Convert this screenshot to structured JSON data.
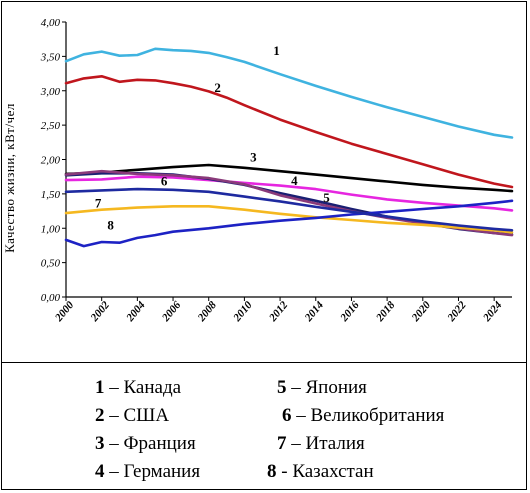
{
  "chart_data": {
    "type": "line",
    "title": "",
    "xlabel": "",
    "ylabel": "Качество жизни, кВт/чел",
    "xlim": [
      2000,
      2025
    ],
    "ylim": [
      0,
      4
    ],
    "x_ticks": [
      "2000",
      "2002",
      "2004",
      "2006",
      "2008",
      "2010",
      "2012",
      "2014",
      "2016",
      "2018",
      "2020",
      "2022",
      "2024"
    ],
    "y_ticks": [
      "0,00",
      "0,50",
      "1,00",
      "1,50",
      "2,00",
      "2,50",
      "3,00",
      "3,50",
      "4,00"
    ],
    "grid": false,
    "legend_position": "below",
    "series": [
      {
        "label": "1",
        "color": "#3fb3e0",
        "x": [
          2000,
          2001,
          2002,
          2003,
          2004,
          2005,
          2006,
          2007,
          2008,
          2009,
          2010,
          2012,
          2014,
          2016,
          2018,
          2020,
          2022,
          2024,
          2025
        ],
        "y": [
          3.43,
          3.53,
          3.57,
          3.51,
          3.52,
          3.61,
          3.59,
          3.58,
          3.55,
          3.49,
          3.42,
          3.24,
          3.07,
          2.91,
          2.76,
          2.62,
          2.48,
          2.36,
          2.32
        ]
      },
      {
        "label": "2",
        "color": "#c0161d",
        "x": [
          2000,
          2001,
          2002,
          2003,
          2004,
          2005,
          2006,
          2007,
          2008,
          2009,
          2010,
          2012,
          2014,
          2016,
          2018,
          2020,
          2022,
          2024,
          2025
        ],
        "y": [
          3.11,
          3.18,
          3.21,
          3.13,
          3.16,
          3.15,
          3.11,
          3.06,
          2.99,
          2.9,
          2.79,
          2.58,
          2.4,
          2.23,
          2.08,
          1.93,
          1.78,
          1.65,
          1.6
        ]
      },
      {
        "label": "3",
        "color": "#000000",
        "x": [
          2000,
          2002,
          2004,
          2006,
          2008,
          2010,
          2012,
          2014,
          2016,
          2018,
          2020,
          2022,
          2024,
          2025
        ],
        "y": [
          1.79,
          1.81,
          1.85,
          1.89,
          1.92,
          1.88,
          1.83,
          1.78,
          1.73,
          1.68,
          1.63,
          1.59,
          1.56,
          1.54
        ]
      },
      {
        "label": "4",
        "color": "#e626e0",
        "x": [
          2000,
          2002,
          2004,
          2006,
          2008,
          2010,
          2012,
          2014,
          2016,
          2018,
          2020,
          2022,
          2024,
          2025
        ],
        "y": [
          1.7,
          1.71,
          1.75,
          1.74,
          1.7,
          1.66,
          1.62,
          1.57,
          1.49,
          1.42,
          1.37,
          1.33,
          1.29,
          1.26
        ]
      },
      {
        "label": "5",
        "color": "#1a1f73",
        "x": [
          2000,
          2002,
          2004,
          2006,
          2008,
          2010,
          2012,
          2014,
          2016,
          2018,
          2020,
          2022,
          2024,
          2025
        ],
        "y": [
          1.77,
          1.8,
          1.8,
          1.78,
          1.72,
          1.63,
          1.51,
          1.4,
          1.28,
          1.17,
          1.07,
          0.99,
          0.93,
          0.91
        ]
      },
      {
        "label": "6",
        "color": "#8a3a7a",
        "x": [
          2000,
          2002,
          2004,
          2006,
          2008,
          2010,
          2012,
          2014,
          2016,
          2018,
          2020,
          2022,
          2024,
          2025
        ],
        "y": [
          1.78,
          1.83,
          1.79,
          1.77,
          1.73,
          1.64,
          1.48,
          1.36,
          1.25,
          1.15,
          1.07,
          1.0,
          0.93,
          0.9
        ]
      },
      {
        "label": "7",
        "color": "#f5b820",
        "x": [
          2000,
          2002,
          2004,
          2006,
          2008,
          2010,
          2012,
          2014,
          2016,
          2018,
          2020,
          2022,
          2024,
          2025
        ],
        "y": [
          1.22,
          1.27,
          1.3,
          1.32,
          1.32,
          1.27,
          1.21,
          1.16,
          1.12,
          1.08,
          1.05,
          1.01,
          0.97,
          0.94
        ]
      },
      {
        "label": "8",
        "color": "#1d22c4",
        "x": [
          2000,
          2001,
          2002,
          2003,
          2004,
          2005,
          2006,
          2008,
          2010,
          2012,
          2014,
          2016,
          2018,
          2020,
          2022,
          2024,
          2025
        ],
        "y": [
          0.83,
          0.74,
          0.8,
          0.79,
          0.86,
          0.9,
          0.95,
          1.0,
          1.06,
          1.11,
          1.15,
          1.2,
          1.24,
          1.28,
          1.32,
          1.37,
          1.4
        ]
      },
      {
        "label": "",
        "color": "#1e2aa0",
        "x": [
          2000,
          2002,
          2004,
          2006,
          2008,
          2010,
          2012,
          2014,
          2016,
          2018,
          2020,
          2022,
          2024,
          2025
        ],
        "y": [
          1.53,
          1.55,
          1.57,
          1.56,
          1.53,
          1.46,
          1.39,
          1.31,
          1.24,
          1.17,
          1.1,
          1.04,
          0.99,
          0.97
        ]
      }
    ],
    "series_label_positions": [
      {
        "text": "1",
        "x": 2011.8,
        "y": 3.52
      },
      {
        "text": "2",
        "x": 2008.5,
        "y": 2.98
      },
      {
        "text": "3",
        "x": 2010.5,
        "y": 1.97
      },
      {
        "text": "4",
        "x": 2012.8,
        "y": 1.63
      },
      {
        "text": "5",
        "x": 2014.6,
        "y": 1.38
      },
      {
        "text": "6",
        "x": 2005.5,
        "y": 1.62
      },
      {
        "text": "7",
        "x": 2001.8,
        "y": 1.3
      },
      {
        "text": "8",
        "x": 2002.5,
        "y": 0.98
      }
    ]
  },
  "legend": [
    {
      "num": "1",
      "text": " – Канада"
    },
    {
      "num": "2",
      "text": " – США"
    },
    {
      "num": "3",
      "text": " – Франция"
    },
    {
      "num": "4",
      "text": " – Германия"
    },
    {
      "num": "5",
      "text": " – Япония"
    },
    {
      "num": "6",
      "text": " – Великобритания"
    },
    {
      "num": "7",
      "text": " – Италия"
    },
    {
      "num": "8",
      "text": " - Казахстан"
    }
  ]
}
